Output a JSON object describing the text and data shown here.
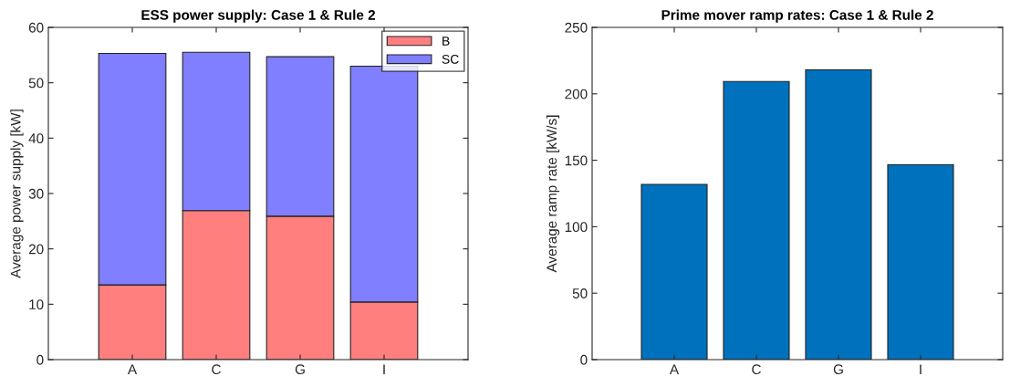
{
  "chart_data": [
    {
      "type": "bar",
      "title": "ESS power supply: Case 1 & Rule 2",
      "ylabel": "Average power supply [kW]",
      "categories": [
        "A",
        "C",
        "G",
        "I"
      ],
      "stacked": true,
      "series": [
        {
          "name": "B",
          "color": "#ff7f7f",
          "values": [
            13.5,
            26.9,
            25.9,
            10.4
          ]
        },
        {
          "name": "SC",
          "color": "#7f7fff",
          "values": [
            41.8,
            28.6,
            28.8,
            42.6
          ]
        }
      ],
      "ylim": [
        0,
        60
      ],
      "yticks": [
        0,
        10,
        20,
        30,
        40,
        50,
        60
      ],
      "legend": "top right",
      "grid": false
    },
    {
      "type": "bar",
      "title": "Prime mover ramp rates: Case 1 & Rule 2",
      "ylabel": "Average ramp rate [kW/s]",
      "categories": [
        "A",
        "C",
        "G",
        "I"
      ],
      "series": [
        {
          "color": "#0072bd",
          "values": [
            131.9,
            209.3,
            218.1,
            146.6
          ]
        }
      ],
      "ylim": [
        0,
        250
      ],
      "yticks": [
        0,
        50,
        100,
        150,
        200,
        250
      ],
      "grid": false
    }
  ]
}
